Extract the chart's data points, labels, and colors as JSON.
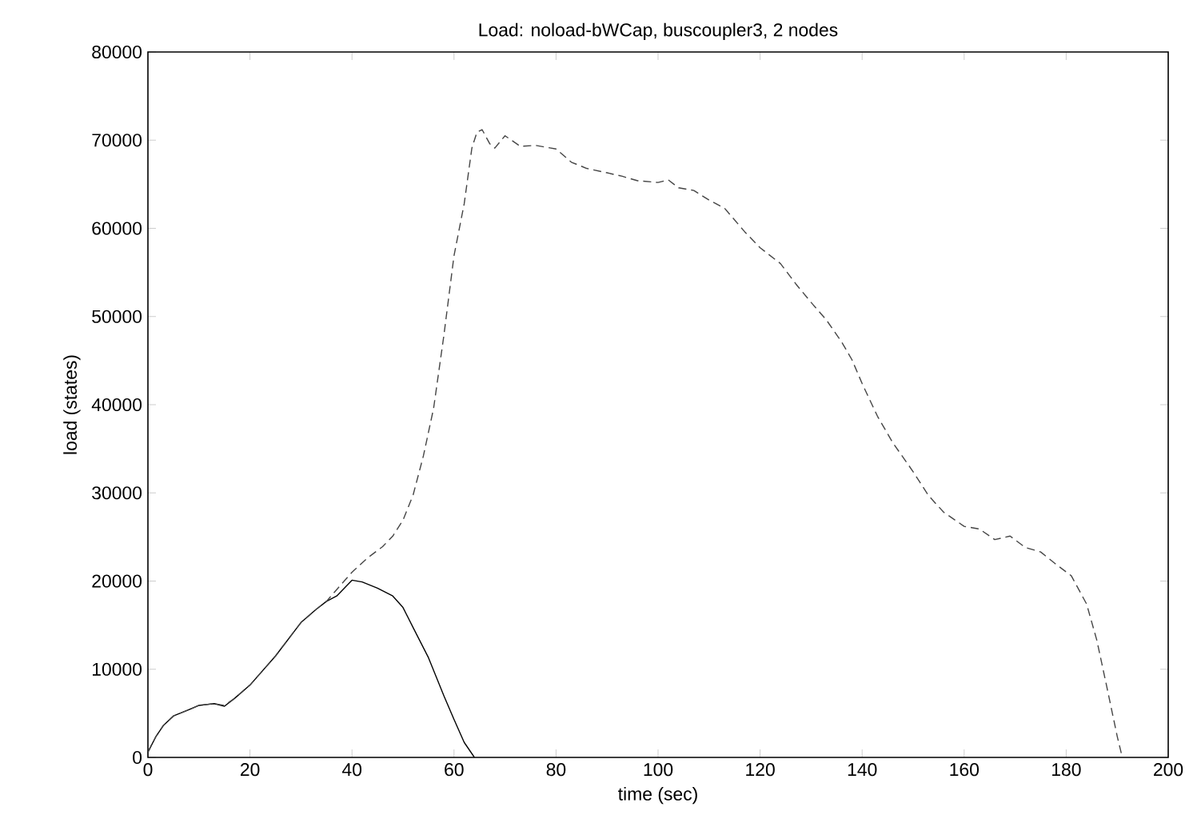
{
  "chart_data": {
    "type": "line",
    "title": "Load: noload-bWCap, buscoupler3, 2 nodes",
    "xlabel": "time (sec)",
    "ylabel": "load (states)",
    "xlim": [
      0,
      200
    ],
    "ylim": [
      0,
      80000
    ],
    "xticks": [
      0,
      20,
      40,
      60,
      80,
      100,
      120,
      140,
      160,
      180,
      200
    ],
    "yticks": [
      0,
      10000,
      20000,
      30000,
      40000,
      50000,
      60000,
      70000,
      80000
    ],
    "series": [
      {
        "color": "#000000",
        "line_style": "solid",
        "x": [
          0,
          1.6,
          3,
          5,
          8,
          10,
          13,
          15,
          17,
          20,
          25,
          30,
          33,
          35,
          37,
          40,
          42,
          45,
          48,
          50,
          52,
          55,
          58,
          60,
          62,
          64
        ],
        "values": [
          600,
          2400,
          3600,
          4700,
          5400,
          5900,
          6100,
          5800,
          6700,
          8200,
          11500,
          15300,
          16800,
          17700,
          18300,
          20100,
          19900,
          19200,
          18300,
          17000,
          14700,
          11300,
          7000,
          4300,
          1700,
          0
        ]
      },
      {
        "color": "#444444",
        "line_style": "dashed",
        "x": [
          0,
          1.6,
          3,
          5,
          8,
          10,
          13,
          15,
          17,
          20,
          25,
          30,
          33,
          35,
          38,
          40,
          43,
          46,
          48,
          50,
          52,
          54,
          56,
          58,
          60,
          62,
          63.5,
          64.5,
          65.5,
          67,
          68,
          70,
          73,
          76,
          80,
          83,
          86,
          90,
          93,
          96,
          100,
          102,
          104,
          107,
          110,
          113,
          117,
          120,
          124,
          127,
          130,
          133,
          136,
          138,
          140,
          143,
          146,
          150,
          153,
          156,
          160,
          163,
          166,
          169,
          172,
          175,
          178,
          181,
          184,
          186,
          188,
          190,
          191
        ],
        "values": [
          600,
          2400,
          3600,
          4700,
          5400,
          5900,
          6100,
          5900,
          6700,
          8200,
          11500,
          15300,
          16800,
          17700,
          19700,
          21000,
          22600,
          23900,
          25100,
          26900,
          29800,
          34200,
          39600,
          47800,
          56900,
          62800,
          69100,
          70900,
          71200,
          69600,
          69100,
          70500,
          69300,
          69400,
          69000,
          67500,
          66800,
          66300,
          65900,
          65400,
          65200,
          65500,
          64600,
          64300,
          63200,
          62300,
          59600,
          57800,
          56000,
          53700,
          51600,
          49600,
          47100,
          45100,
          42400,
          38700,
          35700,
          32400,
          29700,
          27800,
          26200,
          25900,
          24700,
          25100,
          23800,
          23300,
          21900,
          20600,
          17400,
          13300,
          7900,
          2400,
          0
        ]
      }
    ]
  }
}
